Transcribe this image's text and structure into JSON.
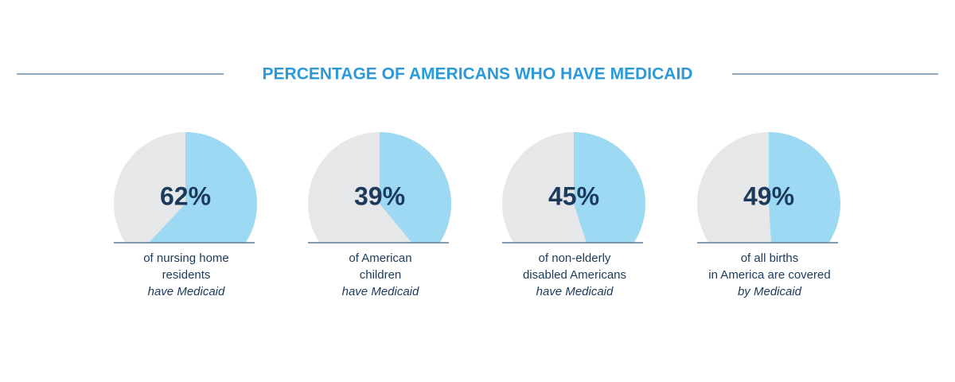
{
  "title": "PERCENTAGE OF AMERICANS WHO HAVE MEDICAID",
  "chart_data": [
    {
      "type": "pie",
      "values": [
        62
      ],
      "value_labels": [
        "62%"
      ],
      "color": "#9dd9f3",
      "caption": [
        "of nursing home",
        "residents"
      ],
      "caption_italic": "have Medicaid"
    },
    {
      "type": "pie",
      "values": [
        39
      ],
      "value_labels": [
        "39%"
      ],
      "color": "#9dd9f3",
      "caption": [
        "of American",
        "children"
      ],
      "caption_italic": "have Medicaid"
    },
    {
      "type": "pie",
      "values": [
        45
      ],
      "value_labels": [
        "45%"
      ],
      "color": "#9dd9f3",
      "caption": [
        "of non-elderly",
        "disabled Americans"
      ],
      "caption_italic": "have Medicaid"
    },
    {
      "type": "pie",
      "values": [
        49
      ],
      "value_labels": [
        "49%"
      ],
      "color": "#9dd9f3",
      "caption": [
        "of all births",
        "in America are covered"
      ],
      "caption_italic": "by Medicaid"
    }
  ]
}
